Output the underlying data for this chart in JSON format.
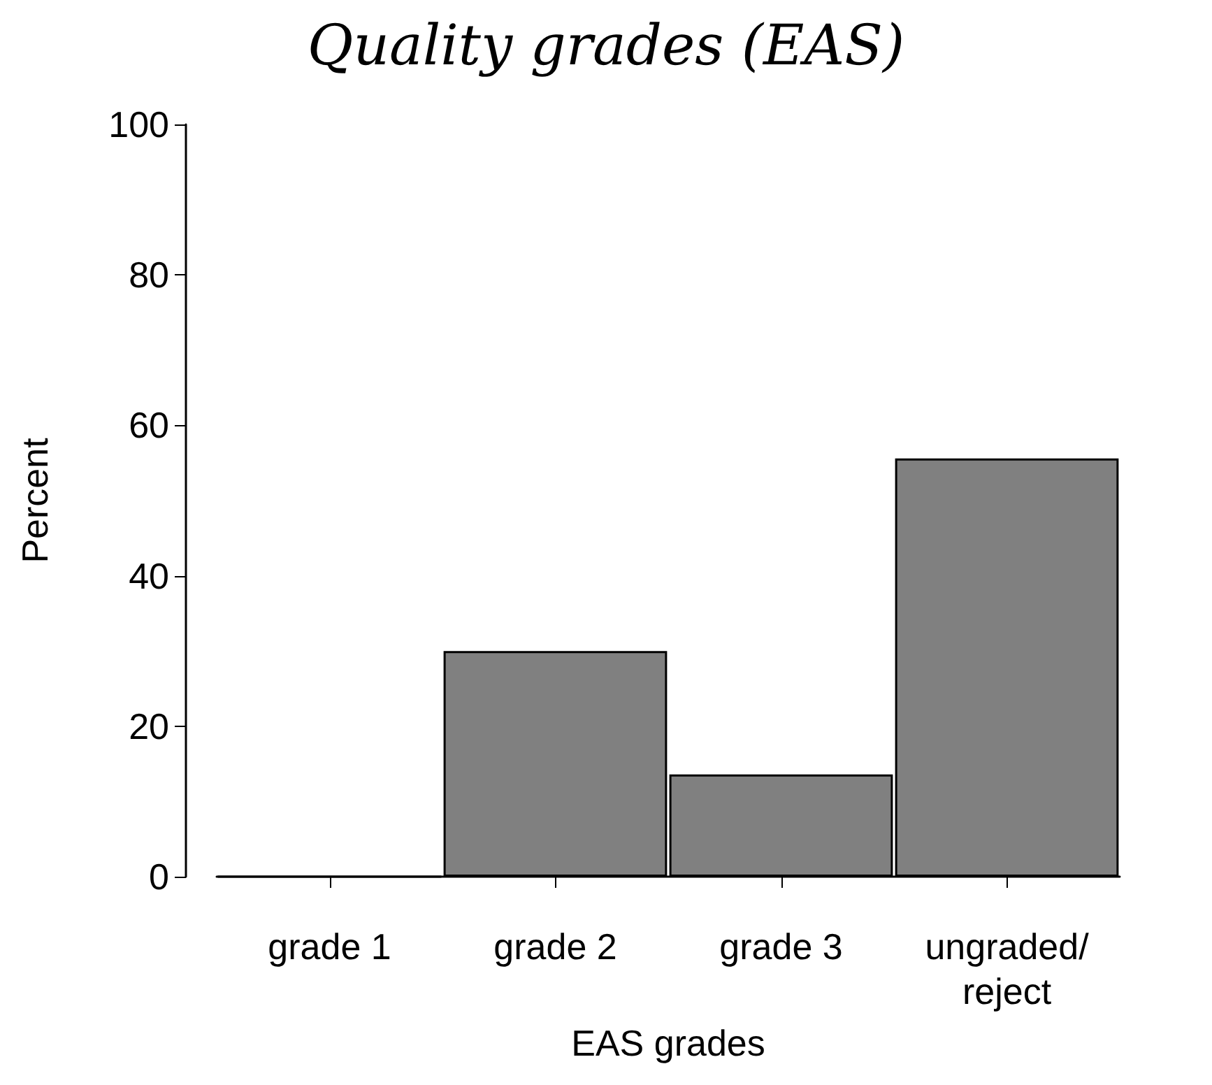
{
  "chart_data": {
    "type": "bar",
    "title": "Quality grades (EAS)",
    "xlabel": "EAS grades",
    "ylabel": "Percent",
    "categories": [
      "grade 1",
      "grade 2",
      "grade 3",
      "ungraded/\nreject"
    ],
    "values": [
      0,
      30,
      13.6,
      55.6
    ],
    "color": "#808080",
    "ylim": [
      0,
      100
    ],
    "yticks": [
      0,
      20,
      40,
      60,
      80,
      100
    ],
    "grid": false
  }
}
